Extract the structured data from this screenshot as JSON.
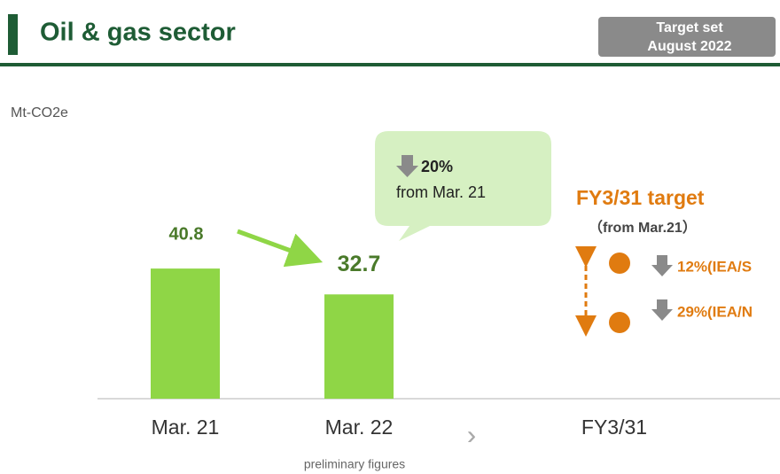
{
  "header": {
    "title": "Oil & gas sector",
    "badge": [
      "Target set",
      "August 2022"
    ]
  },
  "chart_data": {
    "type": "bar",
    "unit": "Mt-CO2e",
    "categories": [
      "Mar. 21",
      "Mar. 22",
      "FY3/31"
    ],
    "values": [
      40.8,
      32.7,
      null
    ],
    "color": "#8fd646",
    "note": "preliminary figures",
    "callout": {
      "change": "20%",
      "text": "from Mar. 21"
    },
    "target": {
      "title": "FY3/31 target",
      "subtitle": "（from Mar.21）",
      "items": [
        "12%(IEA/S",
        "29%(IEA/N"
      ]
    }
  }
}
